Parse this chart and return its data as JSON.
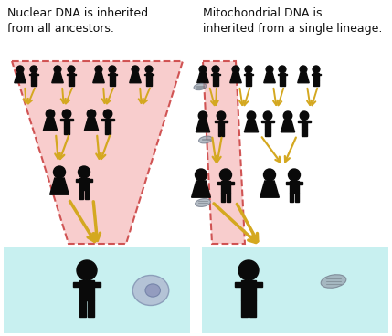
{
  "title_left": "Nuclear DNA is inherited\nfrom all ancestors.",
  "title_right": "Mitochondrial DNA is\ninherited from a single lineage.",
  "bg_color": "#ffffff",
  "bottom_bg": "#c8f0f0",
  "pink_fill": "#f8c8c8",
  "pink_edge": "#cc4444",
  "arrow_gold": "#d4a820",
  "arrow_grey": "#888888",
  "fig_color": "#0a0a0a",
  "cell_outer": "#b0b8d0",
  "cell_inner": "#8890b8",
  "mito_fill": "#9aa4b0",
  "mito_edge": "#707888"
}
